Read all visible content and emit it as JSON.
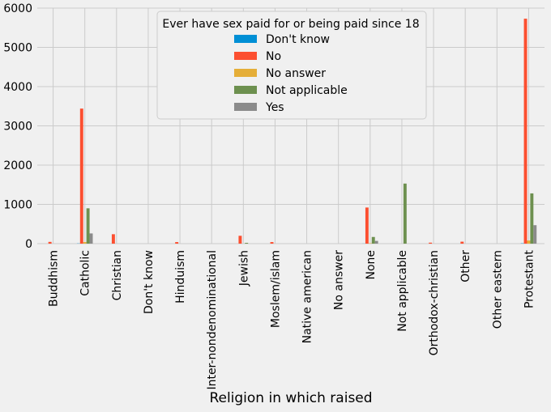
{
  "chart_data": {
    "type": "bar",
    "title": "",
    "xlabel": "Religion in which raised",
    "ylabel": "",
    "ylim": [
      0,
      6000
    ],
    "yticks": [
      0,
      1000,
      2000,
      3000,
      4000,
      5000,
      6000
    ],
    "grid": true,
    "legend": {
      "title": "Ever have sex paid for or being paid since 18",
      "placement": "top-center"
    },
    "categories": [
      "Buddhism",
      "Catholic",
      "Christian",
      "Don't know",
      "Hinduism",
      "Inter-nondenominational",
      "Jewish",
      "Moslem/islam",
      "Native american",
      "No answer",
      "None",
      "Not applicable",
      "Orthodox-christian",
      "Other",
      "Other eastern",
      "Protestant"
    ],
    "series": [
      {
        "name": "Don't know",
        "color": "#008fd5",
        "values": [
          0,
          5,
          0,
          0,
          0,
          0,
          0,
          0,
          0,
          0,
          2,
          0,
          0,
          0,
          0,
          8
        ]
      },
      {
        "name": "No",
        "color": "#fc4f30",
        "values": [
          45,
          3440,
          240,
          0,
          40,
          0,
          200,
          40,
          0,
          0,
          920,
          0,
          25,
          50,
          0,
          5730
        ]
      },
      {
        "name": "No answer",
        "color": "#e5ae38",
        "values": [
          0,
          40,
          0,
          0,
          0,
          0,
          0,
          0,
          0,
          0,
          10,
          0,
          0,
          0,
          0,
          80
        ]
      },
      {
        "name": "Not applicable",
        "color": "#6d904f",
        "values": [
          0,
          900,
          0,
          0,
          0,
          0,
          20,
          0,
          0,
          0,
          170,
          1530,
          0,
          0,
          0,
          1280
        ]
      },
      {
        "name": "Yes",
        "color": "#8b8b8b",
        "values": [
          0,
          260,
          0,
          0,
          0,
          0,
          0,
          0,
          0,
          0,
          70,
          0,
          0,
          0,
          0,
          470
        ]
      }
    ]
  }
}
